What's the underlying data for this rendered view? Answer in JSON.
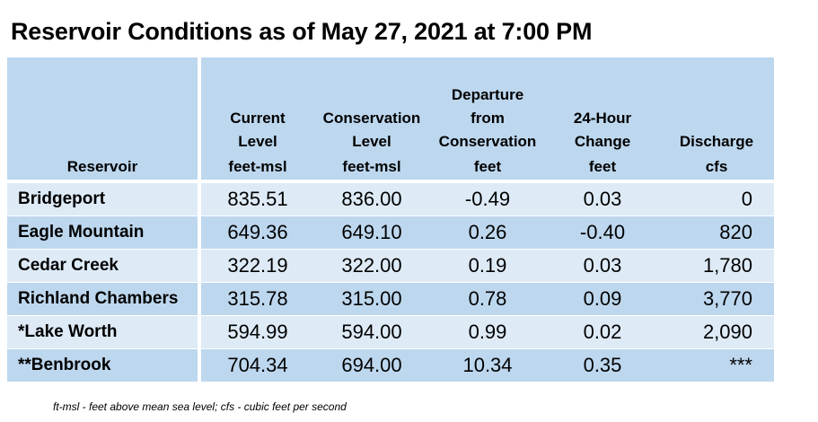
{
  "title": "Reservoir Conditions as of May 27, 2021 at 7:00 PM",
  "columns": [
    {
      "label_lines": [
        "",
        "",
        "",
        "Reservoir"
      ],
      "unit": ""
    },
    {
      "label_lines": [
        "",
        "Current",
        "Level"
      ],
      "unit": "feet-msl"
    },
    {
      "label_lines": [
        "",
        "Conservation",
        "Level"
      ],
      "unit": "feet-msl"
    },
    {
      "label_lines": [
        "Departure",
        "from",
        "Conservation"
      ],
      "unit": "feet"
    },
    {
      "label_lines": [
        "",
        "24-Hour",
        "Change"
      ],
      "unit": "feet"
    },
    {
      "label_lines": [
        "",
        "",
        "Discharge"
      ],
      "unit": "cfs"
    }
  ],
  "rows": [
    {
      "reservoir": "Bridgeport",
      "current_level": "835.51",
      "conservation_level": "836.00",
      "departure": "-0.49",
      "change_24h": "0.03",
      "discharge": "0"
    },
    {
      "reservoir": "Eagle Mountain",
      "current_level": "649.36",
      "conservation_level": "649.10",
      "departure": "0.26",
      "change_24h": "-0.40",
      "discharge": "820"
    },
    {
      "reservoir": "Cedar Creek",
      "current_level": "322.19",
      "conservation_level": "322.00",
      "departure": "0.19",
      "change_24h": "0.03",
      "discharge": "1,780"
    },
    {
      "reservoir": "Richland Chambers",
      "current_level": "315.78",
      "conservation_level": "315.00",
      "departure": "0.78",
      "change_24h": "0.09",
      "discharge": "3,770"
    },
    {
      "reservoir": "*Lake Worth",
      "current_level": "594.99",
      "conservation_level": "594.00",
      "departure": "0.99",
      "change_24h": "0.02",
      "discharge": "2,090"
    },
    {
      "reservoir": "**Benbrook",
      "current_level": "704.34",
      "conservation_level": "694.00",
      "departure": "10.34",
      "change_24h": "0.35",
      "discharge": "***"
    }
  ],
  "footnote": "ft-msl - feet above mean sea level; cfs - cubic feet per second",
  "colors": {
    "header": "#bdd7ee",
    "row_light": "#deebf7",
    "row_dark": "#bdd7ee"
  }
}
